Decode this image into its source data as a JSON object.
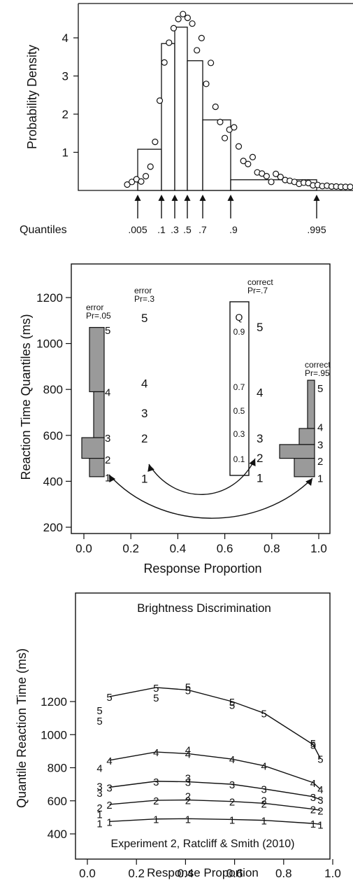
{
  "chart_data": [
    {
      "type": "bar",
      "ylabel": "Probability Density",
      "ylim": [
        0,
        4.9
      ],
      "yticks": [
        "1",
        "2",
        "3",
        "4"
      ],
      "quantiles_label": "Quantiles",
      "quantiles": [
        {
          "label": ".005",
          "x": 0.005
        },
        {
          "label": ".1",
          "x": 0.1
        },
        {
          "label": ".3",
          "x": 0.3
        },
        {
          "label": ".5",
          "x": 0.5
        },
        {
          "label": ".7",
          "x": 0.7
        },
        {
          "label": ".9",
          "x": 0.9
        },
        {
          "label": ".995",
          "x": 0.995
        }
      ],
      "bars": [
        {
          "from": ".005",
          "to": ".1",
          "height": 1.08
        },
        {
          "from": ".1",
          "to": ".3",
          "height": 3.85
        },
        {
          "from": ".3",
          "to": ".5",
          "height": 4.28
        },
        {
          "from": ".5",
          "to": ".7",
          "height": 3.4
        },
        {
          "from": ".7",
          "to": ".9",
          "height": 1.85
        },
        {
          "from": ".9",
          "to": ".995",
          "height": 0.28
        }
      ],
      "density_points": [
        [
          0,
          0.08
        ],
        [
          1,
          0.15
        ],
        [
          2,
          0.22
        ],
        [
          3,
          0.16
        ],
        [
          4,
          0.3
        ],
        [
          5,
          0.55
        ],
        [
          6,
          1.2
        ],
        [
          7,
          2.28
        ],
        [
          8,
          3.28
        ],
        [
          9,
          3.8
        ],
        [
          10,
          4.18
        ],
        [
          11,
          4.42
        ],
        [
          12,
          4.55
        ],
        [
          13,
          4.45
        ],
        [
          14,
          4.3
        ],
        [
          15,
          3.6
        ],
        [
          16,
          3.92
        ],
        [
          17,
          2.72
        ],
        [
          18,
          3.27
        ],
        [
          19,
          2.12
        ],
        [
          20,
          1.72
        ],
        [
          21,
          1.3
        ],
        [
          22,
          1.52
        ],
        [
          23,
          1.58
        ],
        [
          24,
          1.08
        ],
        [
          25,
          0.7
        ],
        [
          26,
          0.62
        ],
        [
          27,
          0.8
        ],
        [
          28,
          0.4
        ],
        [
          29,
          0.37
        ],
        [
          30,
          0.3
        ],
        [
          31,
          0.15
        ],
        [
          32,
          0.36
        ],
        [
          33,
          0.28
        ],
        [
          34,
          0.2
        ],
        [
          35,
          0.18
        ],
        [
          36,
          0.15
        ],
        [
          37,
          0.1
        ],
        [
          38,
          0.13
        ],
        [
          39,
          0.12
        ],
        [
          40,
          0.06
        ],
        [
          41,
          0.07
        ],
        [
          42,
          0.04
        ],
        [
          43,
          0.05
        ],
        [
          44,
          0.03
        ],
        [
          45,
          0.03
        ],
        [
          46,
          0.02
        ],
        [
          47,
          0.02
        ],
        [
          48,
          0.02
        ]
      ]
    },
    {
      "type": "bar",
      "xlabel": "Response Proportion",
      "ylabel": "Reaction Time Quantiles (ms)",
      "xlim": [
        -0.05,
        1.05
      ],
      "ylim": [
        150,
        1310
      ],
      "xticks": [
        "0.0",
        "0.2",
        "0.4",
        "0.6",
        "0.8",
        "1.0"
      ],
      "yticks": [
        "200",
        "400",
        "600",
        "800",
        "1000",
        "1200"
      ],
      "groups": [
        {
          "label": "error\nPr=.05",
          "p": 0.05,
          "quantiles": [
            420,
            500,
            590,
            790,
            1070
          ],
          "histogram": true
        },
        {
          "label": "error\nPr=.3",
          "p": 0.3,
          "quantiles": [
            420,
            500,
            590,
            790,
            1070
          ],
          "histogram": false
        },
        {
          "label": "correct\nPr=.7",
          "p": 0.7,
          "quantiles": [
            420,
            500,
            590,
            790,
            1070
          ],
          "histogram": false
        },
        {
          "label": "correct\nPr=.95",
          "p": 0.95,
          "quantiles": [
            420,
            500,
            560,
            630,
            840
          ],
          "histogram": true
        }
      ],
      "quantile_numbers": [
        "1",
        "2",
        "3",
        "4",
        "5"
      ],
      "legend_box": {
        "header": "Q",
        "rows": [
          {
            "q": "0.9",
            "rt": 1070
          },
          {
            "q": "0.7",
            "rt": 790
          },
          {
            "q": "0.5",
            "rt": 700
          },
          {
            "q": "0.3",
            "rt": 590
          },
          {
            "q": "0.1",
            "rt": 470
          }
        ]
      },
      "annotations": [
        "error",
        "Pr=.05",
        "error",
        "Pr=.3",
        "correct",
        "Pr=.7",
        "correct",
        "Pr=.95"
      ]
    },
    {
      "type": "line",
      "title": "Brightness Discrimination",
      "xlabel": "Response Proportion",
      "ylabel": "Quantile Reaction Time (ms)",
      "annotation": "Experiment 2, Ratcliff & Smith (2010)",
      "xlim": [
        -0.05,
        1.0
      ],
      "ylim": [
        385,
        1335
      ],
      "xticks": [
        "0.0",
        "0.2",
        "0.4",
        "0.6",
        "0.8",
        "1.0"
      ],
      "yticks": [
        "400",
        "600",
        "800",
        "1000",
        "1200"
      ],
      "series": [
        {
          "quantile": "1",
          "x": [
            0.05,
            0.09,
            0.28,
            0.41,
            0.59,
            0.72,
            0.92,
            0.95
          ],
          "y": [
            465,
            475,
            490,
            492,
            487,
            482,
            463,
            458
          ],
          "labels": [
            "1",
            "1",
            "1",
            "1",
            "1",
            "1",
            "1",
            "1"
          ]
        },
        {
          "quantile": "2",
          "x": [
            0.05,
            0.09,
            0.28,
            0.41,
            0.59,
            0.72,
            0.92,
            0.95
          ],
          "y": [
            560,
            578,
            603,
            605,
            596,
            585,
            550,
            542
          ],
          "labels": [
            "2",
            "2",
            "2",
            "2",
            "2",
            "2",
            "2",
            "2"
          ]
        },
        {
          "quantile": "3",
          "x": [
            0.05,
            0.09,
            0.28,
            0.41,
            0.59,
            0.72,
            0.92,
            0.95
          ],
          "y": [
            650,
            682,
            718,
            715,
            700,
            672,
            625,
            607
          ],
          "labels": [
            "3",
            "3",
            "3",
            "3",
            "3",
            "3",
            "3",
            "3"
          ]
        },
        {
          "quantile": "4",
          "x": [
            0.05,
            0.09,
            0.28,
            0.41,
            0.59,
            0.72,
            0.92,
            0.95
          ],
          "y": [
            800,
            845,
            895,
            885,
            852,
            812,
            710,
            670
          ],
          "labels": [
            "4",
            "4",
            "4",
            "4",
            "4",
            "4",
            "4",
            "4"
          ]
        },
        {
          "quantile": "5",
          "x": [
            0.05,
            0.09,
            0.28,
            0.41,
            0.59,
            0.72,
            0.92,
            0.95
          ],
          "y": [
            1150,
            1230,
            1285,
            1270,
            1200,
            1130,
            940,
            855
          ],
          "labels": [
            "5",
            "5",
            "5",
            "5",
            "5",
            "5",
            "5",
            "5"
          ]
        }
      ],
      "extra_point_labels": [
        {
          "text": "5",
          "x": 0.05,
          "y": 1085
        },
        {
          "text": "5",
          "x": 0.28,
          "y": 1225
        },
        {
          "text": "5",
          "x": 0.41,
          "y": 1290
        },
        {
          "text": "5",
          "x": 0.59,
          "y": 1180
        },
        {
          "text": "5",
          "x": 0.92,
          "y": 950
        },
        {
          "text": "4",
          "x": 0.41,
          "y": 910
        },
        {
          "text": "3",
          "x": 0.05,
          "y": 690
        },
        {
          "text": "3",
          "x": 0.41,
          "y": 740
        },
        {
          "text": "2",
          "x": 0.41,
          "y": 630
        },
        {
          "text": "2",
          "x": 0.72,
          "y": 605
        },
        {
          "text": "1",
          "x": 0.05,
          "y": 520
        }
      ]
    }
  ]
}
